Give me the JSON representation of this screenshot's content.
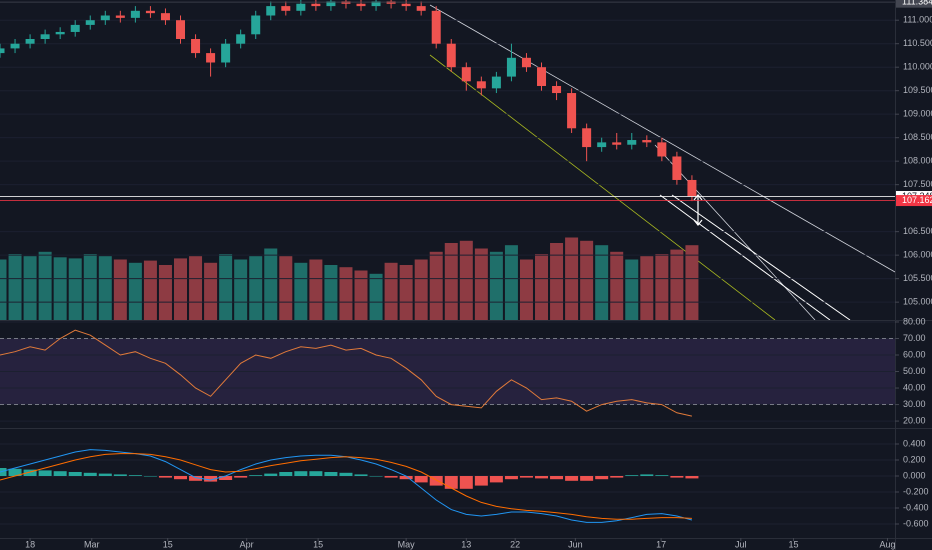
{
  "chart_data": [
    {
      "type": "candlestick",
      "x": [
        0,
        2,
        4,
        6,
        8,
        10,
        12,
        14,
        16,
        18,
        20,
        22,
        24,
        26,
        28,
        30,
        32,
        34,
        36,
        38,
        40,
        42,
        44,
        46,
        48,
        50,
        52,
        54,
        56,
        58,
        60,
        62,
        64,
        66,
        68,
        70,
        72,
        74,
        76,
        78,
        80,
        82,
        84,
        86,
        88,
        90,
        92
      ],
      "open": [
        110.3,
        110.4,
        110.5,
        110.6,
        110.7,
        110.75,
        110.9,
        111.0,
        111.1,
        111.05,
        111.2,
        111.15,
        111.0,
        110.6,
        110.3,
        110.1,
        110.5,
        110.7,
        111.1,
        111.3,
        111.2,
        111.35,
        111.3,
        111.4,
        111.35,
        111.3,
        111.4,
        111.35,
        111.3,
        111.2,
        110.5,
        110.0,
        109.7,
        109.55,
        109.8,
        110.2,
        110.0,
        109.6,
        109.45,
        108.7,
        108.3,
        108.4,
        108.35,
        108.45,
        108.4,
        108.1,
        107.6
      ],
      "high": [
        110.5,
        110.6,
        110.7,
        110.8,
        110.85,
        111.0,
        111.1,
        111.2,
        111.2,
        111.3,
        111.3,
        111.25,
        111.1,
        110.7,
        110.4,
        110.6,
        110.8,
        111.2,
        111.4,
        111.4,
        111.45,
        111.45,
        111.5,
        111.5,
        111.45,
        111.5,
        111.5,
        111.45,
        111.4,
        111.3,
        110.6,
        110.1,
        109.8,
        109.9,
        110.5,
        110.3,
        110.1,
        109.7,
        109.55,
        108.8,
        108.5,
        108.6,
        108.6,
        108.55,
        108.5,
        108.2,
        107.7
      ],
      "low": [
        110.2,
        110.3,
        110.4,
        110.5,
        110.6,
        110.65,
        110.8,
        110.9,
        110.95,
        110.95,
        111.05,
        110.9,
        110.5,
        110.2,
        109.8,
        110.0,
        110.4,
        110.6,
        111.0,
        111.1,
        111.1,
        111.2,
        111.2,
        111.25,
        111.2,
        111.2,
        111.25,
        111.2,
        111.1,
        110.4,
        109.9,
        109.5,
        109.4,
        109.45,
        109.7,
        109.9,
        109.5,
        109.3,
        108.6,
        108.0,
        108.2,
        108.25,
        108.25,
        108.3,
        108.0,
        107.5,
        107.15
      ],
      "close": [
        110.4,
        110.5,
        110.6,
        110.7,
        110.75,
        110.9,
        111.0,
        111.1,
        111.05,
        111.2,
        111.15,
        111.0,
        110.6,
        110.3,
        110.1,
        110.5,
        110.7,
        111.1,
        111.3,
        111.2,
        111.35,
        111.3,
        111.4,
        111.35,
        111.3,
        111.4,
        111.35,
        111.3,
        111.2,
        110.5,
        110.0,
        109.7,
        109.55,
        109.8,
        110.2,
        110.0,
        109.6,
        109.45,
        108.7,
        108.3,
        108.4,
        108.35,
        108.45,
        108.4,
        108.1,
        107.6,
        107.25
      ],
      "up_color": "#26a69a",
      "down_color": "#ef5350",
      "xlim": [
        0,
        119
      ],
      "ylim": [
        104.62,
        111.43
      ],
      "xticks": [
        {
          "value": 4,
          "label": "18"
        },
        {
          "value": 12.2,
          "label": "Mar"
        },
        {
          "value": 22.3,
          "label": "15"
        },
        {
          "value": 32.8,
          "label": "Apr"
        },
        {
          "value": 42.3,
          "label": "15"
        },
        {
          "value": 54,
          "label": "May"
        },
        {
          "value": 62,
          "label": "13"
        },
        {
          "value": 68.5,
          "label": "22"
        },
        {
          "value": 76.5,
          "label": "Jun"
        },
        {
          "value": 87.9,
          "label": "17"
        },
        {
          "value": 98.5,
          "label": "Jul"
        },
        {
          "value": 105.5,
          "label": "15"
        },
        {
          "value": 118,
          "label": "Aug"
        }
      ],
      "yticks": [
        {
          "value": 111,
          "label": "111.000"
        },
        {
          "value": 110.5,
          "label": "110.500"
        },
        {
          "value": 110,
          "label": "110.000"
        },
        {
          "value": 109.5,
          "label": "109.500"
        },
        {
          "value": 109,
          "label": "109.000"
        },
        {
          "value": 108.5,
          "label": "108.500"
        },
        {
          "value": 108,
          "label": "108.000"
        },
        {
          "value": 107.5,
          "label": "107.500"
        },
        {
          "value": 106.5,
          "label": "106.500"
        },
        {
          "value": 106,
          "label": "106.000"
        },
        {
          "value": 105.5,
          "label": "105.500"
        },
        {
          "value": 105,
          "label": "105.000"
        }
      ],
      "hlines": [
        111.384,
        107.248,
        107.162
      ],
      "hline_colors": [
        "#434651",
        "#ffffff",
        "#f23645"
      ]
    },
    {
      "type": "volume",
      "values": [
        55,
        60,
        58,
        62,
        57,
        56,
        60,
        58,
        55,
        52,
        54,
        50,
        56,
        58,
        52,
        60,
        55,
        58,
        65,
        58,
        52,
        55,
        50,
        48,
        45,
        42,
        52,
        50,
        55,
        62,
        70,
        72,
        65,
        62,
        68,
        55,
        60,
        70,
        75,
        72,
        68,
        62,
        55,
        58,
        60,
        64,
        68
      ],
      "up_color": "#1f6f6a",
      "down_color": "#8e3b43"
    },
    {
      "type": "line",
      "values": [
        60,
        62,
        65,
        63,
        70,
        75,
        72,
        66,
        60,
        62,
        58,
        55,
        48,
        40,
        35,
        45,
        55,
        60,
        58,
        62,
        65,
        64,
        66,
        63,
        64,
        60,
        58,
        52,
        45,
        35,
        30,
        29,
        28,
        38,
        45,
        40,
        33,
        34,
        32,
        26,
        30,
        32,
        33,
        31,
        30,
        25,
        23
      ],
      "color": "#e07a3a",
      "ylim": [
        15.8,
        81.2
      ],
      "yticks": [
        {
          "value": 80,
          "label": "80.00"
        },
        {
          "value": 70,
          "label": "70.00"
        },
        {
          "value": 60,
          "label": "60.00"
        },
        {
          "value": 50,
          "label": "50.00"
        },
        {
          "value": 40,
          "label": "40.00"
        },
        {
          "value": 30,
          "label": "30.00"
        },
        {
          "value": 20,
          "label": "20.00"
        }
      ],
      "levels": [
        70,
        30
      ]
    },
    {
      "type": "macd",
      "histogram": [
        0.1,
        0.09,
        0.08,
        0.07,
        0.06,
        0.05,
        0.04,
        0.03,
        0.02,
        0.01,
        0,
        -0.02,
        -0.04,
        -0.06,
        -0.07,
        -0.05,
        -0.02,
        0.01,
        0.03,
        0.05,
        0.06,
        0.06,
        0.05,
        0.04,
        0.02,
        0,
        -0.02,
        -0.04,
        -0.08,
        -0.12,
        -0.16,
        -0.16,
        -0.12,
        -0.08,
        -0.04,
        -0.02,
        -0.03,
        -0.04,
        -0.06,
        -0.06,
        -0.04,
        -0.02,
        0.01,
        0.02,
        0.01,
        -0.02,
        -0.03
      ],
      "macd": [
        0.05,
        0.1,
        0.15,
        0.2,
        0.25,
        0.3,
        0.33,
        0.32,
        0.3,
        0.28,
        0.25,
        0.18,
        0.08,
        -0.02,
        -0.05,
        0,
        0.08,
        0.15,
        0.2,
        0.23,
        0.25,
        0.26,
        0.26,
        0.24,
        0.2,
        0.15,
        0.08,
        0,
        -0.15,
        -0.3,
        -0.42,
        -0.48,
        -0.5,
        -0.48,
        -0.45,
        -0.45,
        -0.47,
        -0.5,
        -0.55,
        -0.58,
        -0.58,
        -0.56,
        -0.52,
        -0.48,
        -0.47,
        -0.5,
        -0.55
      ],
      "signal": [
        -0.05,
        0,
        0.05,
        0.1,
        0.15,
        0.2,
        0.24,
        0.27,
        0.28,
        0.28,
        0.27,
        0.24,
        0.2,
        0.14,
        0.08,
        0.05,
        0.06,
        0.09,
        0.13,
        0.16,
        0.19,
        0.21,
        0.23,
        0.24,
        0.23,
        0.21,
        0.17,
        0.12,
        0.05,
        -0.05,
        -0.15,
        -0.25,
        -0.33,
        -0.38,
        -0.41,
        -0.43,
        -0.44,
        -0.46,
        -0.48,
        -0.51,
        -0.53,
        -0.54,
        -0.54,
        -0.53,
        -0.52,
        -0.52,
        -0.53
      ],
      "hist_up_color": "#26a69a",
      "hist_down_color": "#ef5350",
      "macd_color": "#2196f3",
      "signal_color": "#ff6d00",
      "ylim": [
        -0.775,
        0.6
      ],
      "yticks": [
        {
          "value": 0.4,
          "label": "0.400"
        },
        {
          "value": 0.2,
          "label": "0.200"
        },
        {
          "value": 0,
          "label": "0.000"
        },
        {
          "value": -0.2,
          "label": "-0.200"
        },
        {
          "value": -0.4,
          "label": "-0.400"
        },
        {
          "value": -0.6,
          "label": "-0.600"
        }
      ]
    }
  ]
}
